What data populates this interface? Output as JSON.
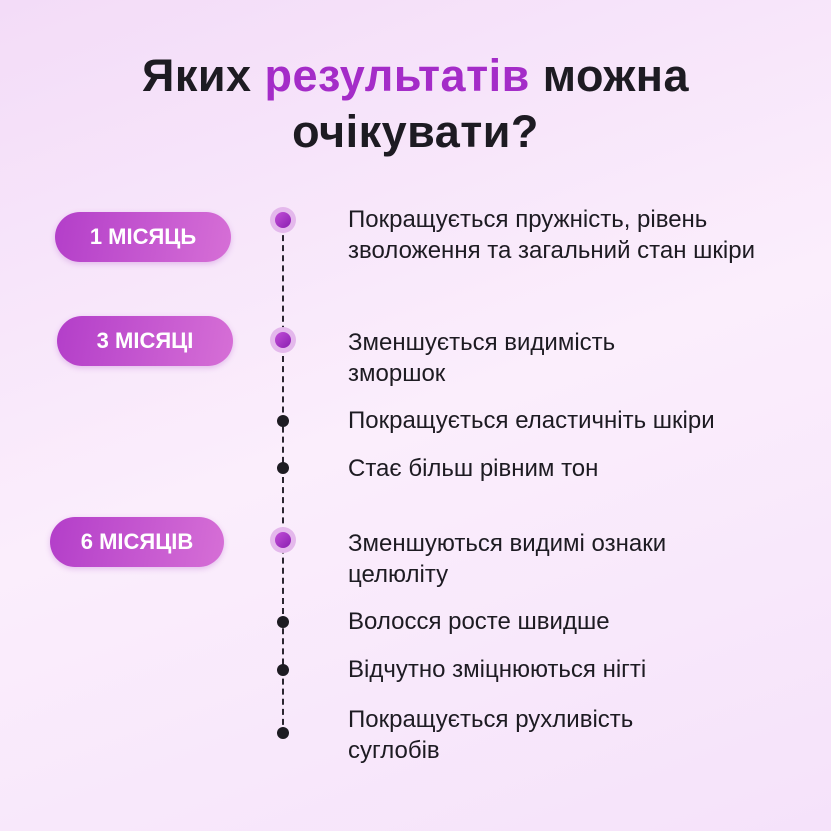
{
  "title": {
    "before": "Яких ",
    "highlight": "результатів",
    "after": " можна",
    "line2": "очікувати?"
  },
  "periods": [
    {
      "label": "1 МІСЯЦЬ",
      "items": [
        "Покращується пружність, рівень зволоження та загальний стан шкіри"
      ]
    },
    {
      "label": "3 МІСЯЦІ",
      "items": [
        "Зменшується видимість зморшок",
        "Покращується еластичніть шкіри",
        "Стає більш рівним тон"
      ]
    },
    {
      "label": "6 МІСЯЦІВ",
      "items": [
        "Зменшуються видимі ознаки целюліту",
        "Волосся росте швидше",
        "Відчутно зміцнюються нігті",
        "Покращується рухливість суглобів"
      ]
    }
  ],
  "colors": {
    "accent": "#a42cc8",
    "text": "#1d1b22"
  }
}
